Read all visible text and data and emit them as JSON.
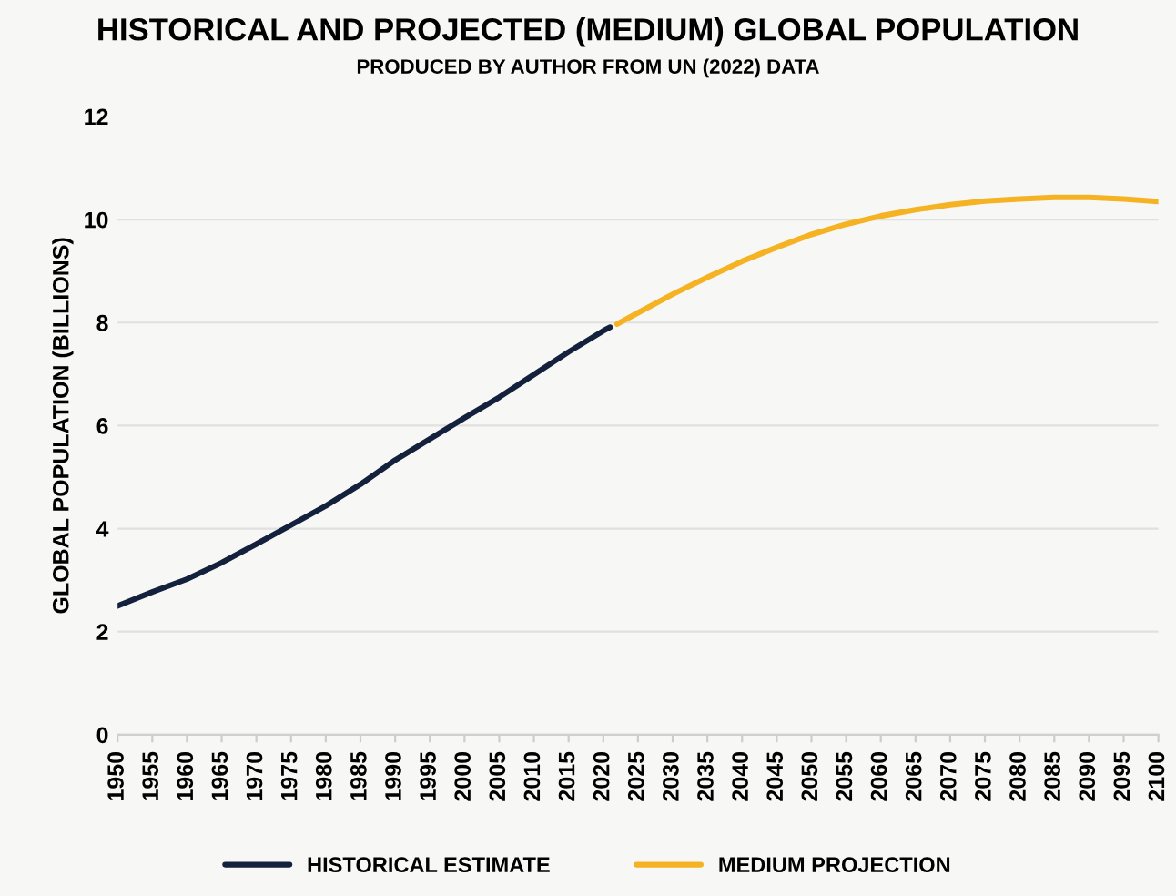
{
  "chart_data": {
    "type": "line",
    "title": "HISTORICAL AND PROJECTED (MEDIUM) GLOBAL POPULATION",
    "subtitle": "PRODUCED BY AUTHOR FROM UN (2022) DATA",
    "ylabel": "GLOBAL POPULATION (BILLIONS)",
    "series": [
      {
        "name": "HISTORICAL ESTIMATE",
        "color": "#14213d",
        "x": [
          1950,
          1955,
          1960,
          1965,
          1970,
          1975,
          1980,
          1985,
          1990,
          1995,
          2000,
          2005,
          2010,
          2015,
          2020,
          2021
        ],
        "values": [
          2.5,
          2.77,
          3.02,
          3.34,
          3.7,
          4.07,
          4.44,
          4.86,
          5.33,
          5.74,
          6.15,
          6.55,
          6.99,
          7.43,
          7.84,
          7.91
        ]
      },
      {
        "name": "MEDIUM PROJECTION",
        "color": "#f5b324",
        "x": [
          2022,
          2025,
          2030,
          2035,
          2040,
          2045,
          2050,
          2055,
          2060,
          2065,
          2070,
          2075,
          2080,
          2085,
          2090,
          2095,
          2100
        ],
        "values": [
          7.97,
          8.19,
          8.55,
          8.88,
          9.19,
          9.46,
          9.71,
          9.91,
          10.07,
          10.19,
          10.29,
          10.36,
          10.4,
          10.43,
          10.43,
          10.4,
          10.35
        ]
      }
    ],
    "xlim": [
      1950,
      2100
    ],
    "xticks": [
      1950,
      1955,
      1960,
      1965,
      1970,
      1975,
      1980,
      1985,
      1990,
      1995,
      2000,
      2005,
      2010,
      2015,
      2020,
      2025,
      2030,
      2035,
      2040,
      2045,
      2050,
      2055,
      2060,
      2065,
      2070,
      2075,
      2080,
      2085,
      2090,
      2095,
      2100
    ],
    "ylim": [
      0,
      12
    ],
    "yticks": [
      0,
      2,
      4,
      6,
      8,
      10,
      12
    ],
    "grid": "y",
    "legend": "bottom",
    "line_style": "solid",
    "marker": "none"
  }
}
